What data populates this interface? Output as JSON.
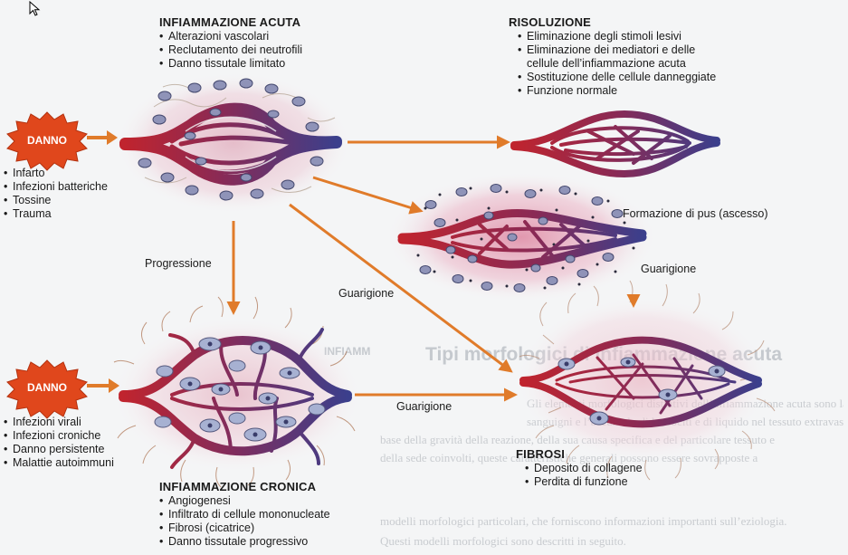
{
  "acute": {
    "title": "INFIAMMAZIONE ACUTA",
    "items": [
      "Alterazioni vascolari",
      "Reclutamento dei neutrofili",
      "Danno tissutale limitato"
    ]
  },
  "resolution": {
    "title": "RISOLUZIONE",
    "items": [
      "Eliminazione degli stimoli lesivi",
      "Eliminazione dei mediatori e delle",
      "cellule dell’infiammazione acuta",
      "Sostituzione delle cellule danneggiate",
      "Funzione normale"
    ]
  },
  "damage_top": {
    "label": "DANNO",
    "items": [
      "Infarto",
      "Infezioni batteriche",
      "Tossine",
      "Trauma"
    ]
  },
  "damage_bottom": {
    "label": "DANNO",
    "items": [
      "Infezioni virali",
      "Infezioni croniche",
      "Danno persistente",
      "Malattie autoimmuni"
    ]
  },
  "chronic": {
    "title": "INFIAMMAZIONE CRONICA",
    "items": [
      "Angiogenesi",
      "Infiltrato di cellule mononucleate",
      "Fibrosi (cicatrice)",
      "Danno tissutale progressivo"
    ]
  },
  "fibrosis": {
    "title": "FIBROSI",
    "items": [
      "Deposito di collagene",
      "Perdita di funzione"
    ]
  },
  "arrow_labels": {
    "pus": "Formazione di pus (ascesso)",
    "progression": "Progressione",
    "healing_diag": "Guarigione",
    "healing_right": "Guarigione",
    "healing_bottom": "Guarigione"
  },
  "background_page": {
    "heading": "Tipi morfologici di infiammazione acuta",
    "chronic_heading_fragment": "INFIAMM",
    "lines": [
      "Gli elementi morfologici distintivi dell’infiammazione acuta sono la dilatazione dei piccoli vasi",
      "sanguigni e l’accumulo di leucociti e di liquido nel tessuto extravascolare. Tuttavia, sulla",
      "base della gravità della reazione, della sua causa specifica e del particolare tessuto e",
      "della sede coinvolti, queste caratteristiche generali possono essere sovrapposte a",
      "modelli morfologici particolari, che forniscono informazioni importanti sull’eziologia.",
      "Questi modelli morfologici sono descritti in seguito."
    ]
  },
  "colors": {
    "artery": "#c0242e",
    "vein": "#3b3f8c",
    "arrow": "#e07b2a",
    "damage": "#e0471c",
    "cell": "#5a5f8e"
  }
}
